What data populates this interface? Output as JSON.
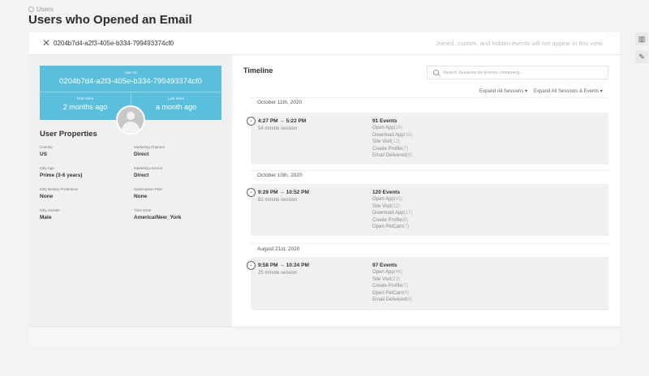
{
  "breadcrumb": {
    "label": "Users"
  },
  "page": {
    "title": "Users who Opened an Email"
  },
  "header": {
    "user_id": "0204b7d4-a2f3-405e-b334-799493374cf0",
    "note": "Joined, custom, and hidden events will not appear in this view."
  },
  "profile": {
    "user_id_label": "User ID",
    "user_id": "0204b7d4-a2f3-405e-b334-799493374cf0",
    "first_seen_label": "First Seen",
    "first_seen": "2 months ago",
    "last_seen_label": "Last Seen",
    "last_seen": "a month ago",
    "accent_color": "#59bfdc"
  },
  "properties": {
    "title": "User Properties",
    "items": [
      {
        "key": "Country",
        "value": "US"
      },
      {
        "key": "Marketing Channel",
        "value": "Direct"
      },
      {
        "key": "Kitty Age",
        "value": "Prime (3-6 years)"
      },
      {
        "key": "Marketing Source",
        "value": "Direct"
      },
      {
        "key": "Kitty Dietary Preference",
        "value": "None"
      },
      {
        "key": "Subscription Plan",
        "value": "None"
      },
      {
        "key": "Kitty Gender",
        "value": "Male"
      },
      {
        "key": "Time Zone",
        "value": "America/New_York"
      }
    ]
  },
  "timeline": {
    "title": "Timeline",
    "search_placeholder": "Search Sessions for Events containing...",
    "expand_sessions": "Expand All Sessions",
    "expand_all": "Expand All Sessions & Events",
    "groups": [
      {
        "date": "October 11th, 2020",
        "time": "4:27 PM → 5:22 PM",
        "duration": "54 minute session",
        "count": "91 Events",
        "events": [
          {
            "name": "Open App",
            "count": "(26)"
          },
          {
            "name": "Download App",
            "count": "(18)"
          },
          {
            "name": "Site Visit",
            "count": "(12)"
          },
          {
            "name": "Create Profile",
            "count": "(7)"
          },
          {
            "name": "Email Delivered",
            "count": "(6)"
          }
        ]
      },
      {
        "date": "October 10th, 2020",
        "time": "9:29 PM → 10:52 PM",
        "duration": "82 minute session",
        "count": "120 Events",
        "events": [
          {
            "name": "Open App",
            "count": "(43)"
          },
          {
            "name": "Site Visit",
            "count": "(22)"
          },
          {
            "name": "Download App",
            "count": "(17)"
          },
          {
            "name": "Create Profile",
            "count": "(8)"
          },
          {
            "name": "Open PetCam",
            "count": "(7)"
          }
        ]
      },
      {
        "date": "August 21st, 2020",
        "time": "9:58 PM → 10:24 PM",
        "duration": "25 minute session",
        "count": "97 Events",
        "events": [
          {
            "name": "Open App",
            "count": "(46)"
          },
          {
            "name": "Site Visit",
            "count": "(22)"
          },
          {
            "name": "Create Profile",
            "count": "(7)"
          },
          {
            "name": "Open PetCam",
            "count": "(6)"
          },
          {
            "name": "Email Delivered",
            "count": "(6)"
          }
        ]
      }
    ]
  }
}
